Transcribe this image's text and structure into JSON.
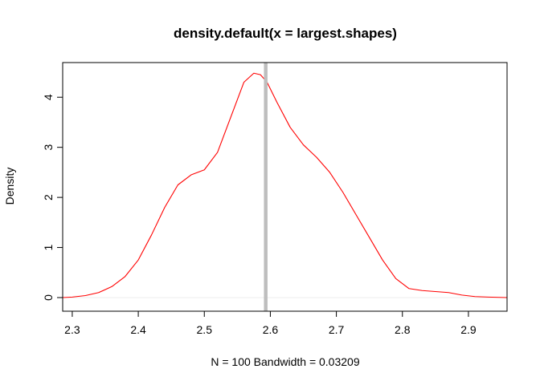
{
  "chart_data": {
    "type": "line",
    "title": "density.default(x = largest.shapes)",
    "xlabel": "N = 100   Bandwidth = 0.03209",
    "ylabel": "Density",
    "xlim": [
      2.2855,
      2.9585
    ],
    "ylim": [
      0,
      4.5
    ],
    "x_ticks": [
      "2.3",
      "2.4",
      "2.5",
      "2.6",
      "2.7",
      "2.8",
      "2.9"
    ],
    "y_ticks": [
      "0",
      "1",
      "2",
      "3",
      "4"
    ],
    "grid": false,
    "series": [
      {
        "color": "#ff0000",
        "x": [
          2.2855,
          2.3,
          2.32,
          2.34,
          2.36,
          2.38,
          2.4,
          2.42,
          2.44,
          2.46,
          2.48,
          2.5,
          2.52,
          2.54,
          2.56,
          2.575,
          2.585,
          2.595,
          2.61,
          2.63,
          2.65,
          2.67,
          2.69,
          2.71,
          2.73,
          2.75,
          2.77,
          2.79,
          2.81,
          2.83,
          2.85,
          2.87,
          2.89,
          2.91,
          2.93,
          2.9585
        ],
        "y": [
          0.0,
          0.01,
          0.04,
          0.1,
          0.22,
          0.42,
          0.75,
          1.25,
          1.8,
          2.25,
          2.45,
          2.55,
          2.9,
          3.6,
          4.3,
          4.48,
          4.45,
          4.3,
          3.9,
          3.4,
          3.05,
          2.8,
          2.5,
          2.1,
          1.65,
          1.2,
          0.75,
          0.38,
          0.18,
          0.14,
          0.12,
          0.1,
          0.05,
          0.02,
          0.01,
          0.0
        ]
      }
    ],
    "reference_line": {
      "x": 2.593,
      "color": "#bebebe"
    },
    "baseline": {
      "y": 0,
      "color": "#eeeeee"
    }
  }
}
